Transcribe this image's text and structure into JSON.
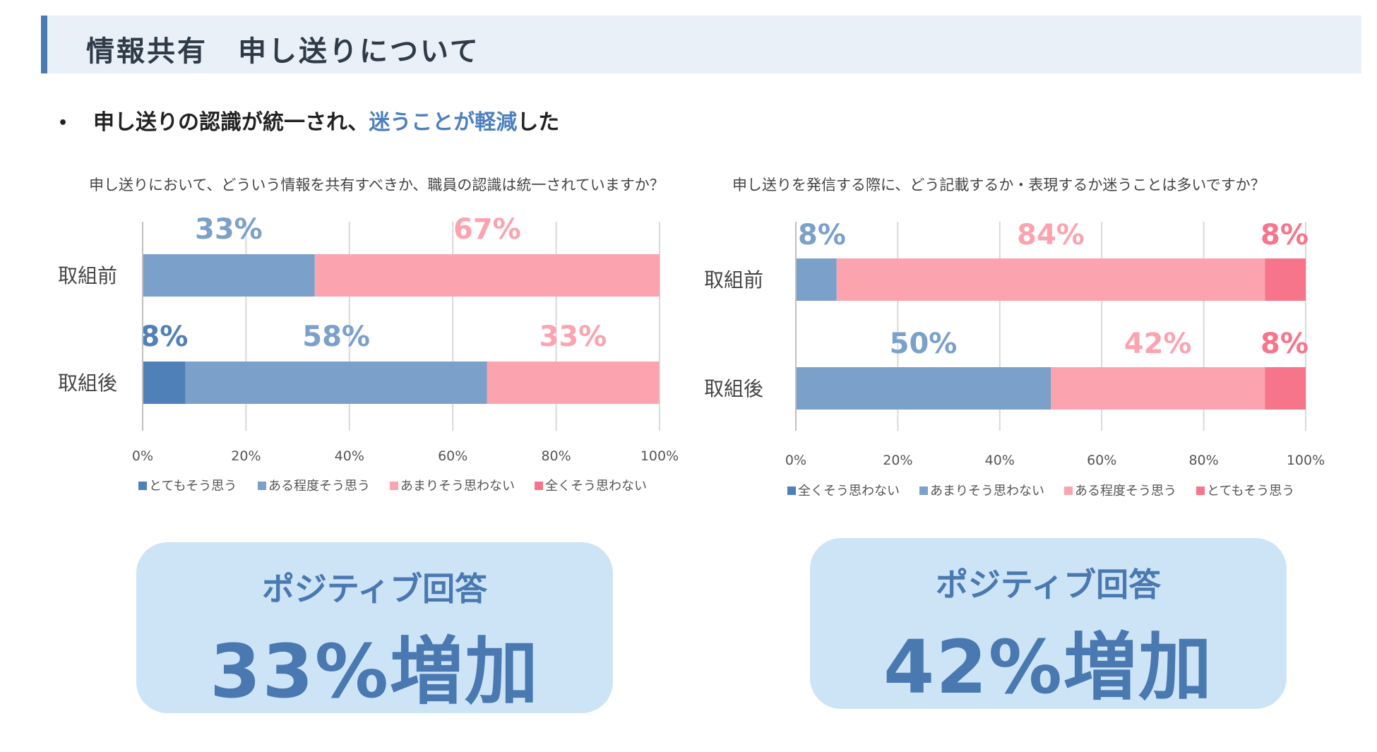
{
  "page": {
    "title": "情報共有　申し送りについて",
    "bullet": {
      "marker": "•",
      "text_pre": "申し送りの認識が統一され、",
      "highlight": "迷うことが軽減",
      "text_post": "した"
    }
  },
  "chart_data": [
    {
      "type": "bar",
      "orientation": "horizontal-stacked-100",
      "title": "申し送りにおいて、どういう情報を共有すべきか、職員の認識は統一されていますか？",
      "categories": [
        "取組前",
        "取組後"
      ],
      "xlim": [
        0,
        100
      ],
      "xticks": [
        "0%",
        "20%",
        "40%",
        "60%",
        "80%",
        "100%"
      ],
      "series": [
        {
          "name": "とてもそう思う",
          "color": "#4f80b8",
          "values": [
            0,
            8.3
          ]
        },
        {
          "name": "ある程度そう思う",
          "color": "#7ba0c9",
          "values": [
            33.3,
            58.3
          ]
        },
        {
          "name": "あまりそう思わない",
          "color": "#fba4b0",
          "values": [
            66.7,
            33.3
          ]
        },
        {
          "name": "全くそう思わない",
          "color": "#f7758a",
          "values": [
            0,
            0
          ]
        }
      ],
      "data_labels": [
        [
          null,
          "33%",
          "67%",
          null
        ],
        [
          "8%",
          "58%",
          "33%",
          null
        ]
      ]
    },
    {
      "type": "bar",
      "orientation": "horizontal-stacked-100",
      "title": "申し送りを発信する際に、どう記載するか・表現するか迷うことは多いですか？",
      "categories": [
        "取組前",
        "取組後"
      ],
      "xlim": [
        0,
        100
      ],
      "xticks": [
        "0%",
        "20%",
        "40%",
        "60%",
        "80%",
        "100%"
      ],
      "series": [
        {
          "name": "全くそう思わない",
          "color": "#4f80b8",
          "values": [
            0,
            0
          ]
        },
        {
          "name": "あまりそう思わない",
          "color": "#7ba0c9",
          "values": [
            8,
            50
          ]
        },
        {
          "name": "ある程度そう思う",
          "color": "#fba4b0",
          "values": [
            84,
            42
          ]
        },
        {
          "name": "とてもそう思う",
          "color": "#f7758a",
          "values": [
            8,
            8
          ]
        }
      ],
      "data_labels": [
        [
          null,
          "8%",
          "84%",
          "8%"
        ],
        [
          null,
          "50%",
          "42%",
          "8%"
        ]
      ]
    }
  ],
  "callouts": [
    {
      "label": "ポジティブ回答",
      "value": "33%増加"
    },
    {
      "label": "ポジティブ回答",
      "value": "42%増加"
    }
  ]
}
